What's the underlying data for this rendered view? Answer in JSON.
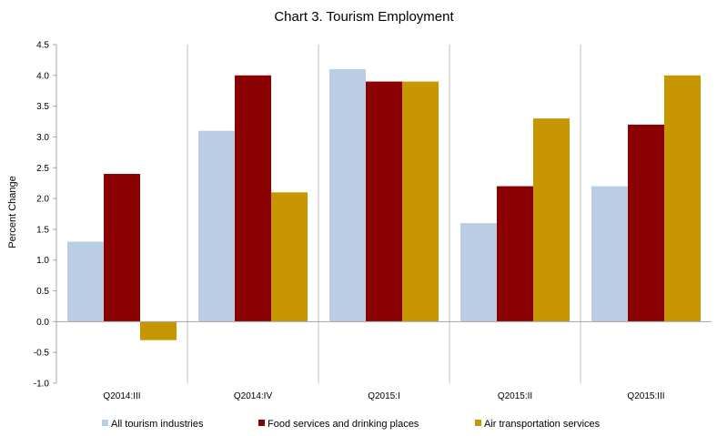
{
  "chart_data": {
    "type": "bar",
    "title": "Chart 3. Tourism Employment",
    "xlabel": "",
    "ylabel": "Percent Change",
    "categories": [
      "Q2014:III",
      "Q2014:IV",
      "Q2015:I",
      "Q2015:II",
      "Q2015:III"
    ],
    "series": [
      {
        "name": "All tourism industries",
        "color": "#b9cde5",
        "values": [
          1.3,
          3.1,
          4.1,
          1.6,
          2.2
        ]
      },
      {
        "name": "Food services and drinking places",
        "color": "#8b0000",
        "values": [
          2.4,
          4.0,
          3.9,
          2.2,
          3.2
        ]
      },
      {
        "name": "Air transportation services",
        "color": "#c89600",
        "values": [
          -0.3,
          2.1,
          3.9,
          3.3,
          4.0
        ]
      }
    ],
    "ylim": [
      -1.0,
      4.5
    ],
    "yticks": [
      "-1.0",
      "-0.5",
      "0.0",
      "0.5",
      "1.0",
      "1.5",
      "2.0",
      "2.5",
      "3.0",
      "3.5",
      "4.0",
      "4.5"
    ],
    "grid": "vertical category separators",
    "legend": "bottom"
  }
}
